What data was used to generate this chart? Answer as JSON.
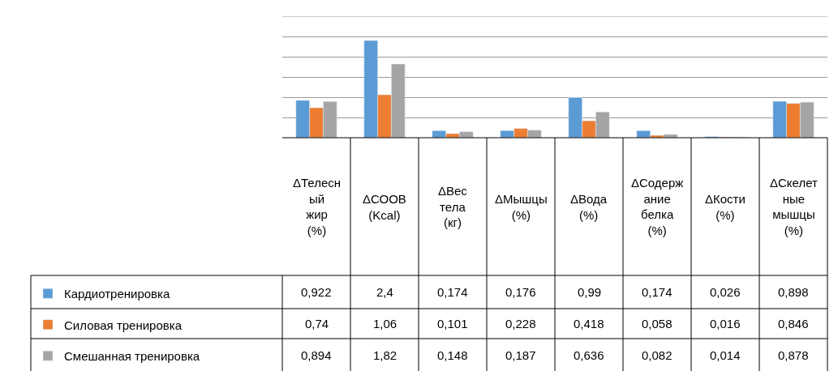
{
  "chart_data": {
    "type": "bar",
    "categories": [
      "ΔТелесный жир (%)",
      "ΔСООВ (Kcal)",
      "ΔВес тела (кг)",
      "ΔМышцы (%)",
      "ΔВода (%)",
      "ΔСодержание белка (%)",
      "ΔКости (%)",
      "ΔСкелетные мышцы (%)"
    ],
    "series": [
      {
        "name": "Кардиотренировка",
        "color": "#5b9bd5",
        "values": [
          0.922,
          2.4,
          0.174,
          0.176,
          0.99,
          0.174,
          0.026,
          0.898
        ],
        "value_labels": [
          "0,922",
          "2,4",
          "0,174",
          "0,176",
          "0,99",
          "0,174",
          "0,026",
          "0,898"
        ]
      },
      {
        "name": "Силовая тренировка",
        "color": "#ed7d31",
        "values": [
          0.74,
          1.06,
          0.101,
          0.228,
          0.418,
          0.058,
          0.016,
          0.846
        ],
        "value_labels": [
          "0,74",
          "1,06",
          "0,101",
          "0,228",
          "0,418",
          "0,058",
          "0,016",
          "0,846"
        ]
      },
      {
        "name": "Смешанная тренировка",
        "color": "#a5a5a5",
        "values": [
          0.894,
          1.82,
          0.148,
          0.187,
          0.636,
          0.082,
          0.014,
          0.878
        ],
        "value_labels": [
          "0,894",
          "1,82",
          "0,148",
          "0,187",
          "0,636",
          "0,082",
          "0,014",
          "0,878"
        ]
      }
    ],
    "ylim": [
      0,
      3
    ],
    "yticks": [
      {
        "value": 0,
        "label": null
      },
      {
        "value": 0.5,
        "label": null
      },
      {
        "value": 1,
        "label": null
      },
      {
        "value": 1.5,
        "label": null
      },
      {
        "value": 2,
        "label": null
      },
      {
        "value": 2.5,
        "label": null
      },
      {
        "value": 3,
        "label": null
      }
    ],
    "grid": "y",
    "legend": "bottom left"
  }
}
